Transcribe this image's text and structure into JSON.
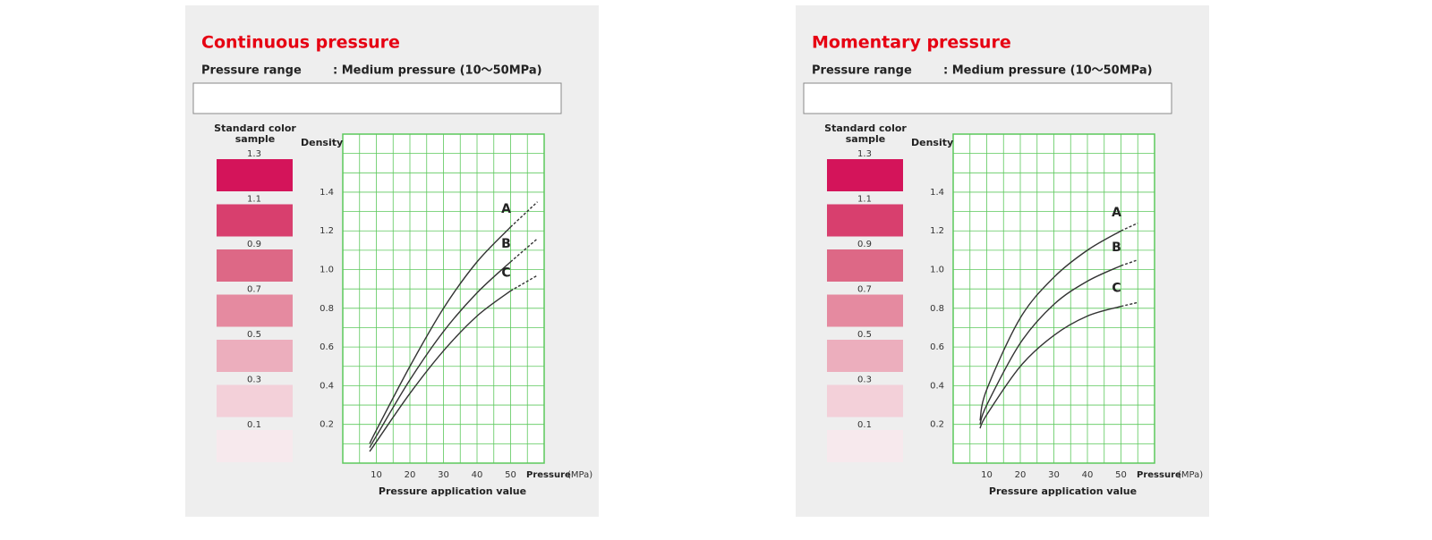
{
  "chart_data": [
    {
      "type": "line",
      "title": "Continuous pressure",
      "subtitle_label": "Pressure range",
      "subtitle": ": Medium pressure (10～50MPa)",
      "color_samples": {
        "title": "Standard color sample",
        "values": [
          1.3,
          1.1,
          0.9,
          0.7,
          0.5,
          0.3,
          0.1
        ],
        "colors": [
          "#d4145a",
          "#d83f6e",
          "#dd6886",
          "#e58aa0",
          "#ecaebd",
          "#f3d0d9",
          "#f7e9ed"
        ]
      },
      "y_label": "Density",
      "x_label": "Pressure application value",
      "x_unit_label": "Pressure",
      "x_unit": "(MPa)",
      "xlim": [
        0,
        60
      ],
      "xticks": [
        10,
        20,
        30,
        40,
        50
      ],
      "x_grid_step": 5,
      "ylim": [
        0,
        1.7
      ],
      "yticks": [
        0.2,
        0.4,
        0.6,
        0.8,
        {
          "value": 1,
          "label": "1.0"
        },
        1.2,
        1.4
      ],
      "y_grid_step": 0.1,
      "grid": true,
      "grid_color": "#5cc85c",
      "line_color": "#333333",
      "dashed_after_x": 50,
      "x": [
        8,
        10,
        20,
        30,
        40,
        50,
        58
      ],
      "series": [
        {
          "name": "A",
          "values": [
            0.1,
            0.17,
            0.5,
            0.8,
            1.04,
            1.22,
            1.35
          ]
        },
        {
          "name": "B",
          "values": [
            0.08,
            0.14,
            0.43,
            0.68,
            0.88,
            1.04,
            1.16
          ]
        },
        {
          "name": "C",
          "values": [
            0.06,
            0.11,
            0.36,
            0.58,
            0.76,
            0.89,
            0.97
          ]
        }
      ]
    },
    {
      "type": "line",
      "title": "Momentary pressure",
      "subtitle_label": "Pressure range",
      "subtitle": ": Medium pressure (10～50MPa)",
      "color_samples": {
        "title": "Standard color sample",
        "values": [
          1.3,
          1.1,
          0.9,
          0.7,
          0.5,
          0.3,
          0.1
        ],
        "colors": [
          "#d4145a",
          "#d83f6e",
          "#dd6886",
          "#e58aa0",
          "#ecaebd",
          "#f3d0d9",
          "#f7e9ed"
        ]
      },
      "y_label": "Density",
      "x_label": "Pressure application value",
      "x_unit_label": "Pressure",
      "x_unit": "(MPa)",
      "xlim": [
        0,
        60
      ],
      "xticks": [
        10,
        20,
        30,
        40,
        50
      ],
      "x_grid_step": 5,
      "ylim": [
        0,
        1.7
      ],
      "yticks": [
        0.2,
        0.4,
        0.6,
        0.8,
        {
          "value": 1,
          "label": "1.0"
        },
        1.2,
        1.4
      ],
      "y_grid_step": 0.1,
      "grid": true,
      "grid_color": "#5cc85c",
      "line_color": "#333333",
      "dashed_after_x": 50,
      "x": [
        8,
        10,
        20,
        30,
        40,
        50,
        55
      ],
      "series": [
        {
          "name": "A",
          "values": [
            0.22,
            0.38,
            0.75,
            0.96,
            1.1,
            1.2,
            1.24
          ]
        },
        {
          "name": "B",
          "values": [
            0.2,
            0.3,
            0.62,
            0.82,
            0.94,
            1.02,
            1.05
          ]
        },
        {
          "name": "C",
          "values": [
            0.18,
            0.25,
            0.5,
            0.66,
            0.76,
            0.81,
            0.83
          ]
        }
      ]
    }
  ]
}
